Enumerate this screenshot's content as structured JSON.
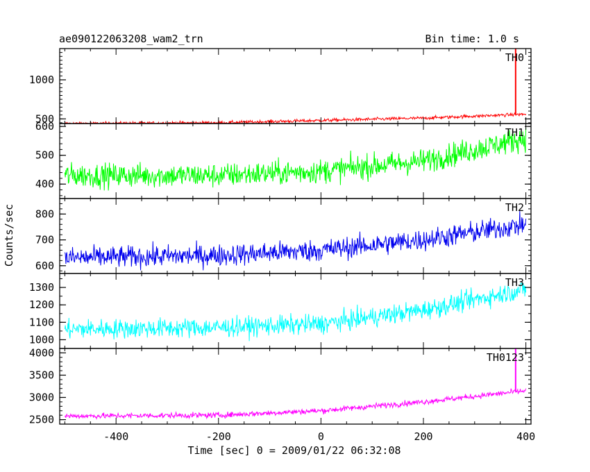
{
  "header": {
    "title": "ae090122063208_wam2_trn",
    "bin_time": "Bin time: 1.0 s"
  },
  "chart_data": {
    "type": "line",
    "x_label": "Time [sec] 0 = 2009/01/22 06:32:08",
    "y_label": "Counts/sec",
    "x_range": [
      -510,
      410
    ],
    "x_ticks": [
      -400,
      -200,
      0,
      200,
      400
    ],
    "panels": [
      {
        "name": "TH0",
        "color": "#ff0000",
        "ylim": [
          440,
          1400
        ],
        "yticks": [
          500,
          1000
        ],
        "trend": {
          "x": [
            -500,
            -200,
            0,
            200,
            400
          ],
          "y": [
            440,
            450,
            480,
            510,
            560
          ]
        },
        "noise": 15,
        "spike": {
          "x": 380,
          "y": 1400
        }
      },
      {
        "name": "TH1",
        "color": "#00ff00",
        "ylim": [
          350,
          610
        ],
        "yticks": [
          400,
          500,
          600
        ],
        "trend": {
          "x": [
            -500,
            -200,
            0,
            200,
            400
          ],
          "y": [
            430,
            430,
            445,
            480,
            560
          ]
        },
        "noise": 30
      },
      {
        "name": "TH2",
        "color": "#0000ee",
        "ylim": [
          570,
          860
        ],
        "yticks": [
          600,
          700,
          800
        ],
        "trend": {
          "x": [
            -500,
            -200,
            0,
            200,
            400
          ],
          "y": [
            630,
            640,
            660,
            700,
            760
          ]
        },
        "noise": 30
      },
      {
        "name": "TH3",
        "color": "#00ffff",
        "ylim": [
          950,
          1380
        ],
        "yticks": [
          1000,
          1100,
          1200,
          1300
        ],
        "trend": {
          "x": [
            -500,
            -200,
            0,
            200,
            400
          ],
          "y": [
            1060,
            1070,
            1090,
            1170,
            1290
          ]
        },
        "noise": 40
      },
      {
        "name": "TH0123",
        "color": "#ff00ff",
        "ylim": [
          2400,
          4100
        ],
        "yticks": [
          2500,
          3000,
          3500,
          4000
        ],
        "trend": {
          "x": [
            -500,
            -200,
            0,
            200,
            400
          ],
          "y": [
            2580,
            2600,
            2700,
            2900,
            3150
          ]
        },
        "noise": 45,
        "spike": {
          "x": 380,
          "y": 4100
        }
      }
    ]
  }
}
